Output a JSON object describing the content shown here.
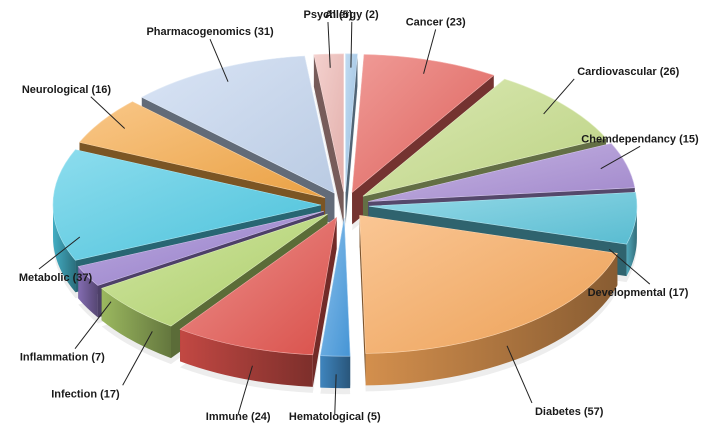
{
  "chart_data": {
    "type": "pie",
    "style": "3d-exploded",
    "title": "",
    "slices": [
      {
        "label": "Allergy",
        "value": 2,
        "display": "Allergy (2)",
        "color": "#9fc7ea"
      },
      {
        "label": "Cancer",
        "value": 23,
        "display": "Cancer (23)",
        "color": "#e8655f"
      },
      {
        "label": "Cardiovascular",
        "value": 26,
        "display": "Cardiovascular (26)",
        "color": "#c6dd8a"
      },
      {
        "label": "Chemdependancy",
        "value": 15,
        "display": "Chemdependancy (15)",
        "color": "#a98fd6"
      },
      {
        "label": "Developmental",
        "value": 17,
        "display": "Developmental (17)",
        "color": "#5ec6dc"
      },
      {
        "label": "Diabetes",
        "value": 57,
        "display": "Diabetes (57)",
        "color": "#f8a85a"
      },
      {
        "label": "Hematological",
        "value": 5,
        "display": "Hematological (5)",
        "color": "#4a9de0"
      },
      {
        "label": "Immune",
        "value": 24,
        "display": "Immune (24)",
        "color": "#e4554f"
      },
      {
        "label": "Infection",
        "value": 17,
        "display": "Infection (17)",
        "color": "#b6d870"
      },
      {
        "label": "Inflammation",
        "value": 7,
        "display": "Inflammation (7)",
        "color": "#9a7fd0"
      },
      {
        "label": "Metabolic",
        "value": 37,
        "display": "Metabolic (37)",
        "color": "#4fcbe5"
      },
      {
        "label": "Neurological",
        "value": 16,
        "display": "Neurological (16)",
        "color": "#f6a948"
      },
      {
        "label": "Pharmacogenomics",
        "value": 31,
        "display": "Pharmacogenomics (31)",
        "color": "#c4d6ef"
      },
      {
        "label": "Psych",
        "value": 5,
        "display": "Psych (5)",
        "color": "#eeb8b4"
      }
    ]
  }
}
